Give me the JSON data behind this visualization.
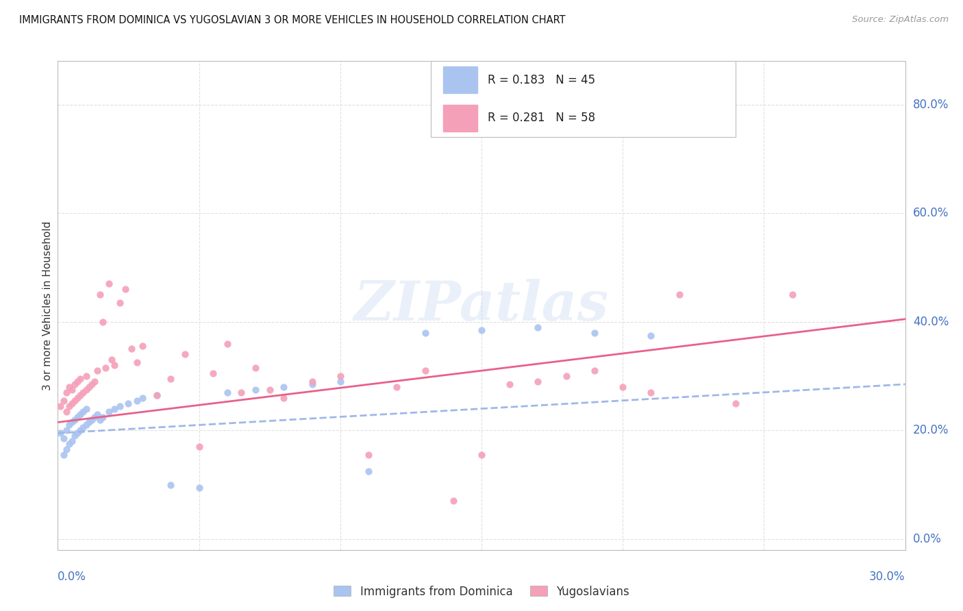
{
  "title": "IMMIGRANTS FROM DOMINICA VS YUGOSLAVIAN 3 OR MORE VEHICLES IN HOUSEHOLD CORRELATION CHART",
  "source": "Source: ZipAtlas.com",
  "ylabel": "3 or more Vehicles in Household",
  "right_yticks": [
    "0.0%",
    "20.0%",
    "40.0%",
    "60.0%",
    "80.0%"
  ],
  "right_ytick_vals": [
    0.0,
    0.2,
    0.4,
    0.6,
    0.8
  ],
  "xlim": [
    0.0,
    0.3
  ],
  "ylim": [
    -0.02,
    0.88
  ],
  "color_dominica": "#aac4f0",
  "color_yugoslav": "#f4a0b8",
  "color_dominica_line": "#a0b8e8",
  "color_yugoslav_line": "#e8608a",
  "color_label": "#4472c4",
  "color_grid": "#e0e0e0",
  "background_color": "#ffffff",
  "watermark": "ZIPatlas",
  "dom_x": [
    0.001,
    0.002,
    0.002,
    0.003,
    0.003,
    0.004,
    0.004,
    0.005,
    0.005,
    0.006,
    0.006,
    0.007,
    0.007,
    0.008,
    0.008,
    0.009,
    0.009,
    0.01,
    0.01,
    0.011,
    0.012,
    0.013,
    0.014,
    0.015,
    0.016,
    0.018,
    0.02,
    0.022,
    0.025,
    0.028,
    0.03,
    0.035,
    0.04,
    0.05,
    0.06,
    0.07,
    0.08,
    0.09,
    0.1,
    0.11,
    0.13,
    0.15,
    0.17,
    0.19,
    0.21
  ],
  "dom_y": [
    0.195,
    0.155,
    0.185,
    0.165,
    0.2,
    0.175,
    0.21,
    0.18,
    0.215,
    0.19,
    0.22,
    0.195,
    0.225,
    0.2,
    0.23,
    0.205,
    0.235,
    0.21,
    0.24,
    0.215,
    0.22,
    0.225,
    0.23,
    0.22,
    0.225,
    0.235,
    0.24,
    0.245,
    0.25,
    0.255,
    0.26,
    0.265,
    0.1,
    0.095,
    0.27,
    0.275,
    0.28,
    0.285,
    0.29,
    0.125,
    0.38,
    0.385,
    0.39,
    0.38,
    0.375
  ],
  "yug_x": [
    0.001,
    0.002,
    0.003,
    0.003,
    0.004,
    0.004,
    0.005,
    0.005,
    0.006,
    0.006,
    0.007,
    0.007,
    0.008,
    0.008,
    0.009,
    0.01,
    0.01,
    0.011,
    0.012,
    0.013,
    0.014,
    0.015,
    0.016,
    0.017,
    0.018,
    0.019,
    0.02,
    0.022,
    0.024,
    0.026,
    0.028,
    0.03,
    0.035,
    0.04,
    0.045,
    0.05,
    0.055,
    0.06,
    0.065,
    0.07,
    0.075,
    0.08,
    0.09,
    0.1,
    0.11,
    0.12,
    0.13,
    0.14,
    0.15,
    0.16,
    0.17,
    0.18,
    0.19,
    0.2,
    0.21,
    0.22,
    0.24,
    0.26
  ],
  "yug_y": [
    0.245,
    0.255,
    0.235,
    0.27,
    0.245,
    0.28,
    0.25,
    0.275,
    0.255,
    0.285,
    0.26,
    0.29,
    0.265,
    0.295,
    0.27,
    0.275,
    0.3,
    0.28,
    0.285,
    0.29,
    0.31,
    0.45,
    0.4,
    0.315,
    0.47,
    0.33,
    0.32,
    0.435,
    0.46,
    0.35,
    0.325,
    0.355,
    0.265,
    0.295,
    0.34,
    0.17,
    0.305,
    0.36,
    0.27,
    0.315,
    0.275,
    0.26,
    0.29,
    0.3,
    0.155,
    0.28,
    0.31,
    0.07,
    0.155,
    0.285,
    0.29,
    0.3,
    0.31,
    0.28,
    0.27,
    0.45,
    0.25,
    0.45
  ],
  "dom_line_x": [
    0.0,
    0.3
  ],
  "dom_line_y": [
    0.195,
    0.285
  ],
  "yug_line_x": [
    0.0,
    0.3
  ],
  "yug_line_y": [
    0.215,
    0.405
  ]
}
